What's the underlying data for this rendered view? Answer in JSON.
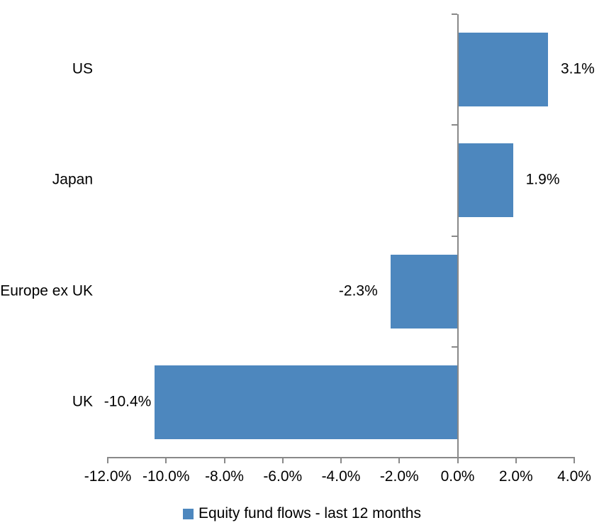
{
  "chart_data": {
    "type": "bar",
    "orientation": "horizontal",
    "title": "",
    "categories": [
      "US",
      "Japan",
      "Europe ex UK",
      "UK"
    ],
    "series": [
      {
        "name": "Equity fund flows - last 12 months",
        "values": [
          3.1,
          1.9,
          -2.3,
          -10.4
        ]
      }
    ],
    "data_labels": [
      "3.1%",
      "1.9%",
      "-2.3%",
      "-10.4%"
    ],
    "xlim": [
      -12,
      4
    ],
    "x_tick_step": 2,
    "x_tick_labels": [
      "-12.0%",
      "-10.0%",
      "-8.0%",
      "-6.0%",
      "-4.0%",
      "-2.0%",
      "0.0%",
      "2.0%",
      "4.0%"
    ],
    "grid": false,
    "legend": {
      "label": "Equity fund flows - last 12 months",
      "position": "bottom"
    },
    "colors": {
      "bar": "#4D87BE",
      "axis": "#898989",
      "text": "#000000",
      "background": "#FFFFFF"
    }
  }
}
